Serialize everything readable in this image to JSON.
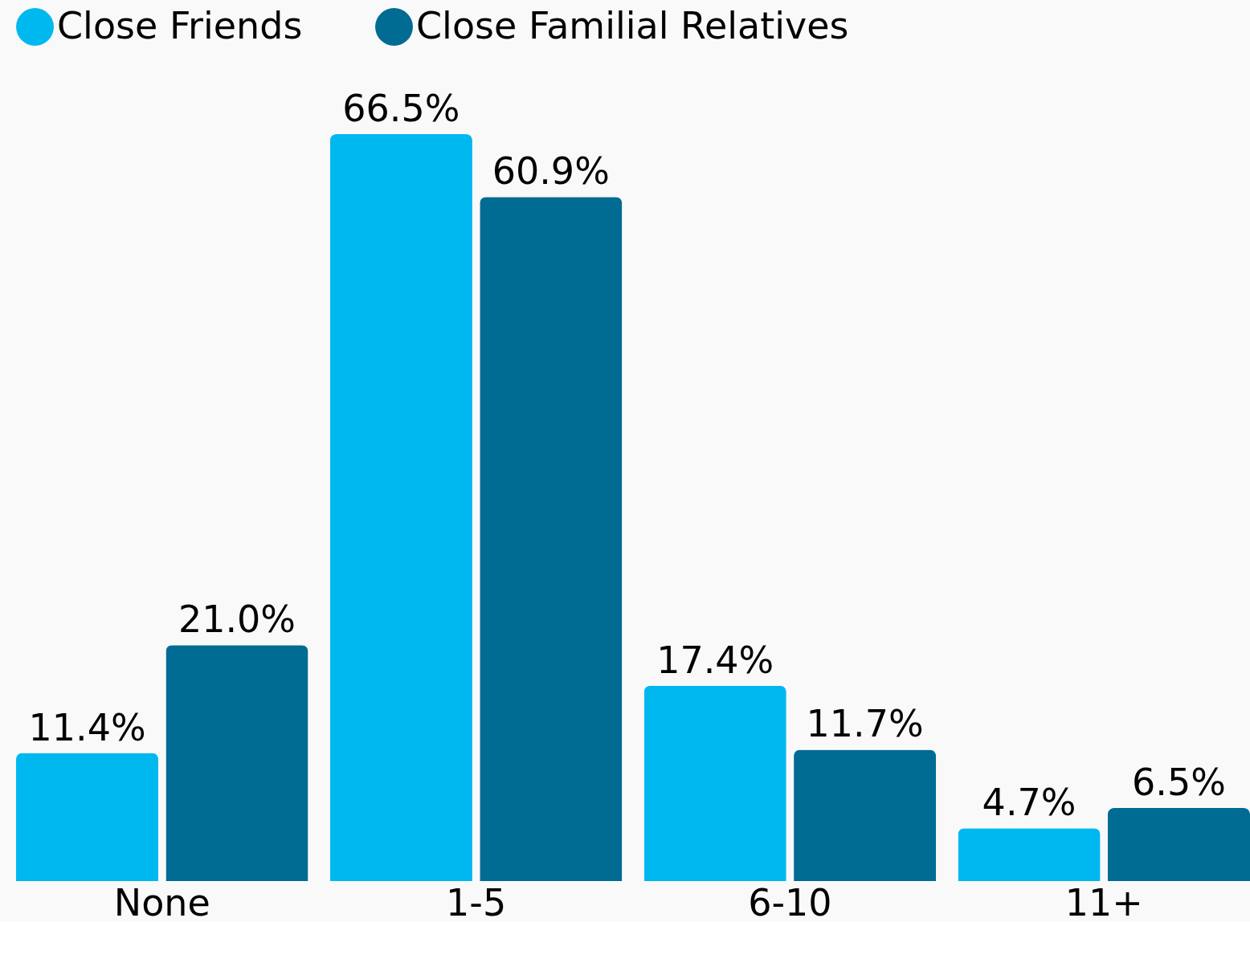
{
  "chart_data": {
    "type": "bar",
    "categories": [
      "None",
      "1-5",
      "6-10",
      "11+"
    ],
    "series": [
      {
        "name": "Close Friends",
        "color": "#00b8f0",
        "values": [
          11.4,
          66.5,
          17.4,
          4.7
        ],
        "value_labels": [
          "11.4%",
          "66.5%",
          "17.4%",
          "4.7%"
        ]
      },
      {
        "name": "Close Familial Relatives",
        "color": "#006b93",
        "values": [
          21.0,
          60.9,
          11.7,
          6.5
        ],
        "value_labels": [
          "21.0%",
          "60.9%",
          "11.7%",
          "6.5%"
        ]
      }
    ],
    "legend": "top",
    "grid": false
  }
}
